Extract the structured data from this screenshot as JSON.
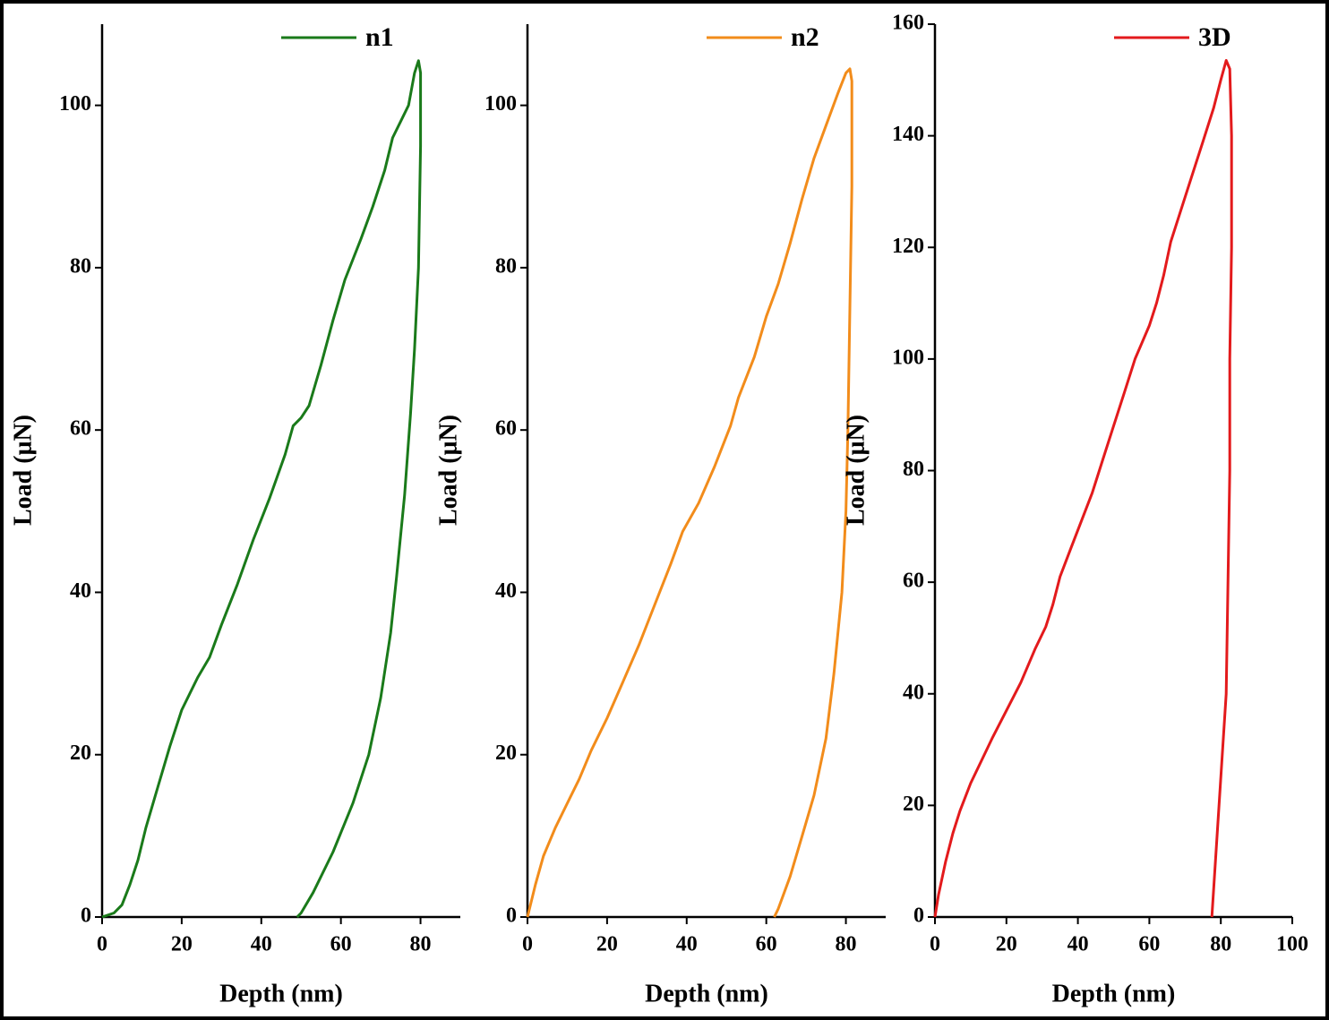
{
  "chart_data": [
    {
      "type": "line",
      "x_label": "Depth (nm)",
      "y_label": "Load (μN)",
      "xlim": [
        0,
        90
      ],
      "xticks": [
        0,
        20,
        40,
        60,
        80
      ],
      "ylim": [
        0,
        110
      ],
      "yticks": [
        0,
        20,
        40,
        60,
        80,
        100
      ],
      "series": [
        {
          "name": "n1",
          "color": "#1a7a1a",
          "x": [
            0,
            3,
            5,
            7,
            9,
            11,
            14,
            17,
            20,
            24,
            27,
            30,
            34,
            38,
            42,
            46,
            48,
            50,
            52,
            55,
            58,
            61,
            65,
            68,
            71,
            73,
            75,
            77,
            78.5,
            79.5,
            80,
            80,
            79.5,
            78.5,
            77.5,
            76,
            74,
            72.5,
            70,
            67,
            63,
            58,
            53,
            50,
            49
          ],
          "values": [
            0,
            0.5,
            1.5,
            4,
            7,
            11,
            16,
            21,
            25.5,
            29.5,
            32,
            36,
            41,
            46.5,
            51.5,
            57,
            60.5,
            61.5,
            63,
            68,
            73.5,
            78.5,
            83.5,
            87.5,
            92,
            96,
            98,
            100,
            104,
            105.5,
            104,
            95,
            80,
            70,
            62,
            52,
            42,
            35,
            27,
            20,
            14,
            8,
            3,
            0.5,
            0
          ]
        }
      ]
    },
    {
      "type": "line",
      "x_label": "Depth (nm)",
      "y_label": "Load (μN)",
      "xlim": [
        0,
        90
      ],
      "xticks": [
        0,
        20,
        40,
        60,
        80
      ],
      "ylim": [
        0,
        110
      ],
      "yticks": [
        0,
        20,
        40,
        60,
        80,
        100
      ],
      "series": [
        {
          "name": "n2",
          "color": "#f28c1b",
          "x": [
            0,
            2,
            4,
            7,
            10,
            13,
            16,
            20,
            24,
            28,
            32,
            36,
            39,
            43,
            47,
            51,
            53,
            57,
            60,
            63,
            66,
            69,
            72,
            75,
            78,
            80,
            81,
            81.5,
            81.5,
            81,
            80.5,
            80,
            79,
            77,
            75,
            72,
            69,
            66,
            63,
            62
          ],
          "values": [
            0,
            4,
            7.5,
            11,
            14,
            17,
            20.5,
            24.5,
            29,
            33.5,
            38.5,
            43.5,
            47.5,
            51,
            55.5,
            60.5,
            64,
            69,
            74,
            78,
            83,
            88.5,
            93.5,
            97.5,
            101.5,
            104,
            104.5,
            103,
            90,
            75,
            60,
            50,
            40,
            30,
            22,
            15,
            10,
            5,
            1,
            0
          ]
        }
      ]
    },
    {
      "type": "line",
      "x_label": "Depth (nm)",
      "y_label": "Load (μN)",
      "xlim": [
        0,
        100
      ],
      "xticks": [
        0,
        20,
        40,
        60,
        80,
        100
      ],
      "ylim": [
        0,
        160
      ],
      "yticks": [
        0,
        20,
        40,
        60,
        80,
        100,
        120,
        140,
        160
      ],
      "series": [
        {
          "name": "3D",
          "color": "#e31a1c",
          "x": [
            0,
            1,
            3,
            5,
            7,
            10,
            13,
            16,
            20,
            24,
            28,
            31,
            33,
            35,
            38,
            41,
            44,
            47,
            50,
            53,
            56,
            60,
            62,
            64,
            66,
            69,
            72,
            75,
            78,
            80,
            81.5,
            82.5,
            83,
            83,
            82.5,
            82.5,
            82,
            81.5,
            80,
            79,
            78,
            77.5
          ],
          "values": [
            0,
            4,
            10,
            15,
            19,
            24,
            28,
            32,
            37,
            42,
            48,
            52,
            56,
            61,
            66,
            71,
            76,
            82,
            88,
            94,
            100,
            106,
            110,
            115,
            121,
            127,
            133,
            139,
            145,
            150,
            153.5,
            152,
            140,
            120,
            100,
            80,
            60,
            40,
            25,
            15,
            5,
            0
          ]
        }
      ]
    }
  ]
}
